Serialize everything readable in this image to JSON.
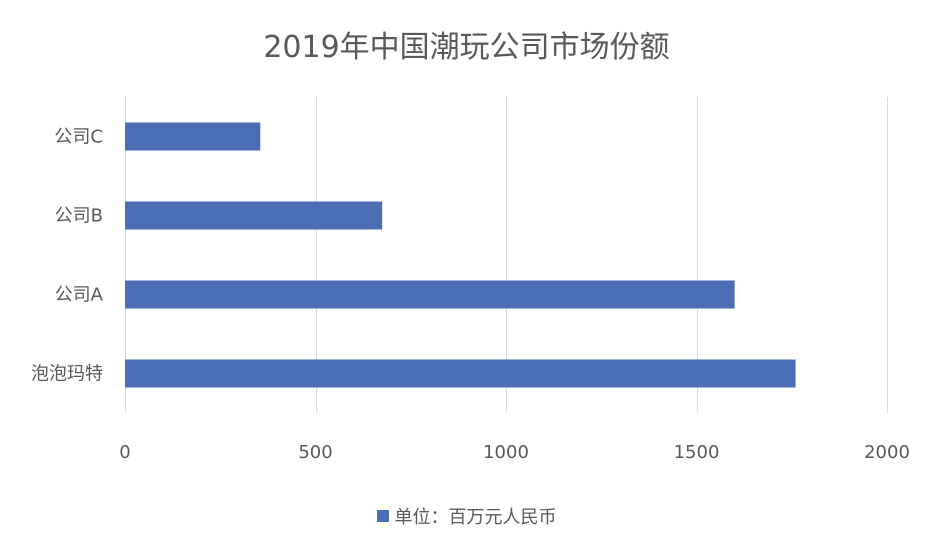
{
  "chart_data": {
    "type": "bar",
    "orientation": "horizontal",
    "title": "2019年中国潮玩公司市场份额",
    "categories": [
      "公司C",
      "公司B",
      "公司A",
      "泡泡玛特"
    ],
    "series": [
      {
        "name": "单位：百万元人民币",
        "values": [
          355,
          675,
          1600,
          1760
        ]
      }
    ],
    "xlim": [
      0,
      2000
    ],
    "x_ticks": [
      0,
      500,
      1000,
      1500,
      2000
    ],
    "x_tick_labels": [
      "0",
      "500",
      "1000",
      "1500",
      "2000"
    ],
    "grid": "vertical",
    "legend_position": "bottom",
    "bar_color": "#4a6db3",
    "grid_color": "#d9d9d9",
    "text_color": "#595959"
  }
}
